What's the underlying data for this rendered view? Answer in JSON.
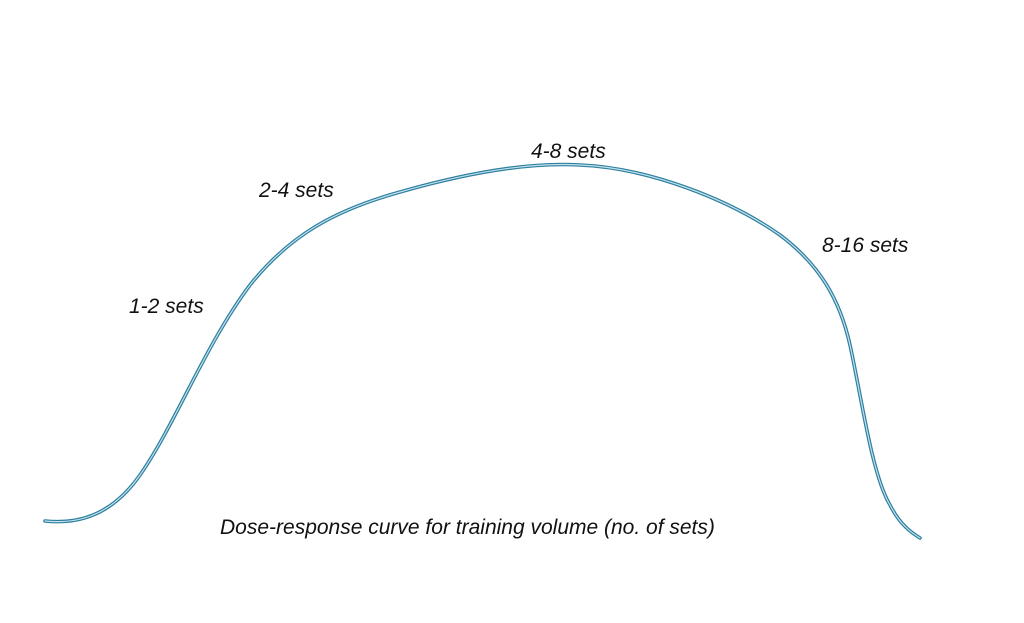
{
  "diagram": {
    "curve_color": "#5fa8c4",
    "curve_outline_color": "#2f7f9e",
    "labels": {
      "one_two": "1-2 sets",
      "two_four": "2-4 sets",
      "four_eight": "4-8 sets",
      "eight_sixteen": "8-16 sets"
    },
    "caption": "Dose-response curve for training volume (no. of sets)"
  }
}
